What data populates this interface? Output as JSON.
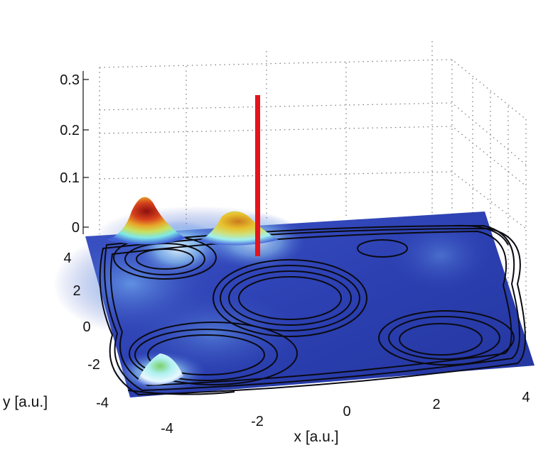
{
  "chart_data": {
    "type": "surface3d",
    "title": "",
    "xlabel": "x [a.u.]",
    "ylabel": "y [a.u.]",
    "zlabel": "",
    "xlim": [
      -5,
      5
    ],
    "ylim": [
      -5,
      5
    ],
    "zlim": [
      0,
      0.3
    ],
    "x_ticks": [
      "-4",
      "-2",
      "0",
      "2",
      "4"
    ],
    "y_ticks": [
      "-4",
      "-2",
      "0",
      "2",
      "4"
    ],
    "z_ticks": [
      "0",
      "0.1",
      "0.2",
      "0.3"
    ],
    "grid": true,
    "colormap": "jet",
    "surface_peaks": [
      {
        "x": -4.3,
        "y": 4.0,
        "z": 0.12
      },
      {
        "x": -1.8,
        "y": 4.2,
        "z": 0.09
      },
      {
        "x": -4.0,
        "y": -3.3,
        "z": 0.06
      }
    ],
    "marker_line": {
      "x": -1.8,
      "y": 4.0,
      "z_top": 0.28,
      "color": "#e4141c"
    },
    "contour_centers": [
      {
        "x": -3.0,
        "y": 3.2
      },
      {
        "x": -0.3,
        "y": 0.5
      },
      {
        "x": 2.4,
        "y": 3.0
      },
      {
        "x": -3.0,
        "y": -2.8
      },
      {
        "x": 3.2,
        "y": -1.5
      }
    ],
    "colors": {
      "floor": "#2c3fb0",
      "contour": "#0a0a12",
      "marker": "#e4141c"
    }
  }
}
